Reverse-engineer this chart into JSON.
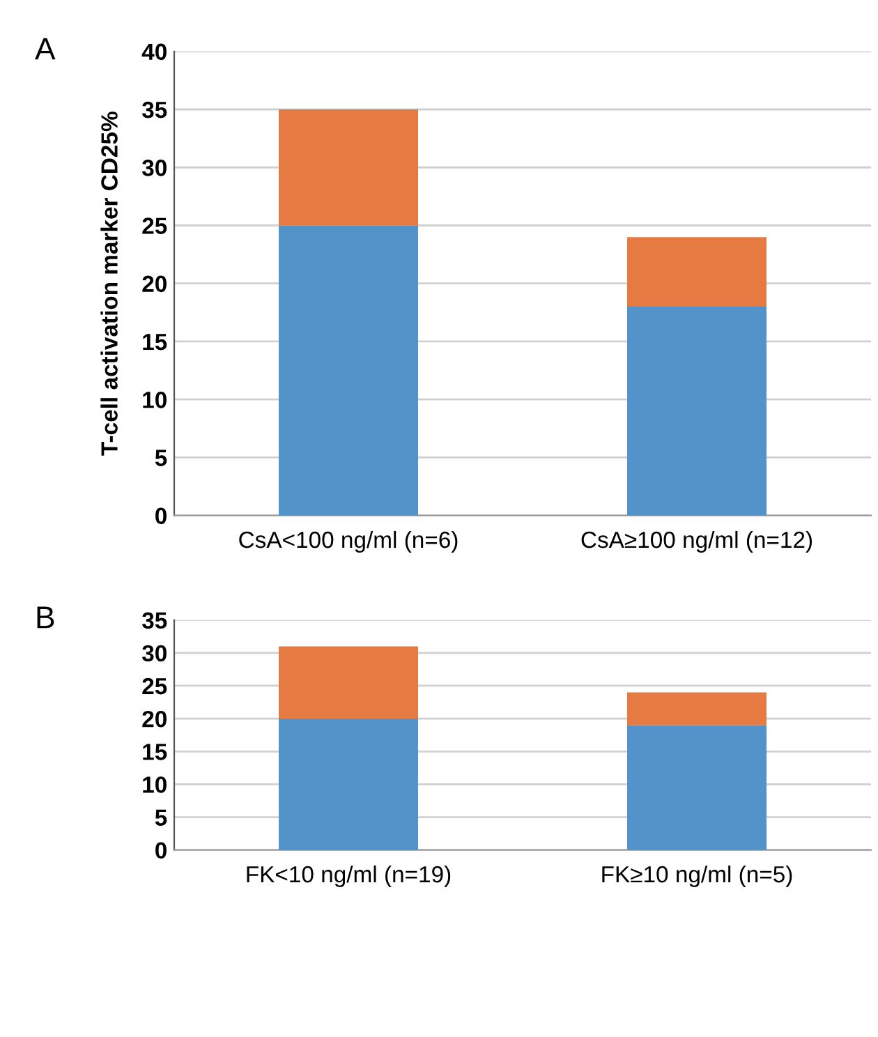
{
  "chart_data": [
    {
      "type": "bar",
      "stacked": true,
      "categories": [
        "CsA<100 ng/ml (n=6)",
        "CsA≥100 ng/ml (n=12)"
      ],
      "ylabel": "T-cell activation marker CD25%",
      "annotations": [
        "A"
      ],
      "series": [
        {
          "color": "#5393c9",
          "values": [
            25,
            18
          ]
        },
        {
          "color": "#e57a42",
          "values": [
            10,
            6
          ]
        }
      ],
      "ylim": [
        0,
        40
      ],
      "yticks": [
        0,
        5,
        10,
        15,
        20,
        25,
        30,
        35,
        40
      ],
      "grid": "y"
    },
    {
      "type": "bar",
      "stacked": true,
      "categories": [
        "FK<10 ng/ml (n=19)",
        "FK≥10 ng/ml (n=5)"
      ],
      "annotations": [
        "B"
      ],
      "series": [
        {
          "color": "#5393c9",
          "values": [
            20,
            19
          ]
        },
        {
          "color": "#e57a42",
          "values": [
            11,
            5
          ]
        }
      ],
      "ylim": [
        0,
        35
      ],
      "yticks": [
        0,
        5,
        10,
        15,
        20,
        25,
        30,
        35
      ],
      "grid": "y"
    }
  ]
}
